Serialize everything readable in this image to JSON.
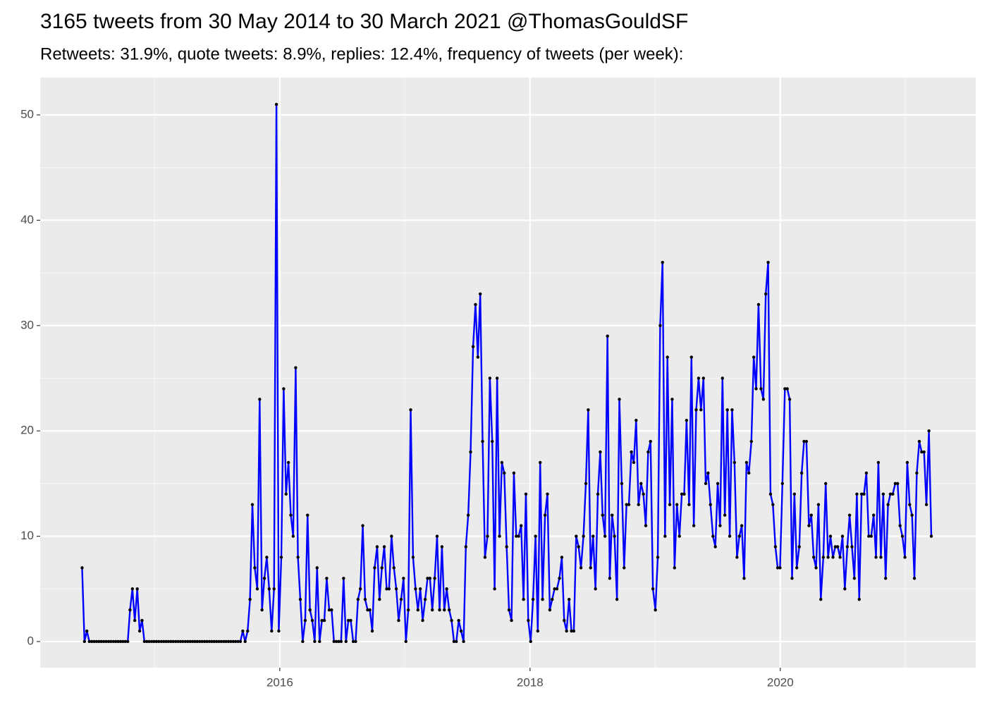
{
  "chart_data": {
    "type": "line",
    "title": "3165 tweets from 30 May 2014 to 30 March 2021 @ThomasGouldSF",
    "subtitle": "Retweets: 31.9%, quote tweets: 8.9%, replies: 12.4%, frequency of tweets (per week):",
    "color": "#0000ff",
    "point_color": "#000000",
    "grid": true,
    "xlim": [
      2014.085,
      2021.562
    ],
    "xticks": [
      2016,
      2018,
      2020
    ],
    "ylim": [
      -2.48,
      53.55
    ],
    "yticks": [
      0,
      10,
      20,
      30,
      40,
      50
    ],
    "x": [
      2014.42,
      2014.439,
      2014.458,
      2014.478,
      2014.497,
      2014.516,
      2014.535,
      2014.554,
      2014.573,
      2014.593,
      2014.612,
      2014.631,
      2014.65,
      2014.67,
      2014.689,
      2014.708,
      2014.727,
      2014.746,
      2014.765,
      2014.785,
      2014.803,
      2014.822,
      2014.841,
      2014.861,
      2014.88,
      2014.899,
      2014.918,
      2014.937,
      2014.956,
      2014.976,
      2014.995,
      2015.014,
      2015.033,
      2015.053,
      2015.072,
      2015.091,
      2015.11,
      2015.129,
      2015.148,
      2015.168,
      2015.187,
      2015.206,
      2015.225,
      2015.245,
      2015.264,
      2015.283,
      2015.302,
      2015.321,
      2015.34,
      2015.36,
      2015.379,
      2015.398,
      2015.417,
      2015.437,
      2015.456,
      2015.475,
      2015.494,
      2015.513,
      2015.532,
      2015.552,
      2015.57,
      2015.589,
      2015.608,
      2015.628,
      2015.647,
      2015.666,
      2015.685,
      2015.704,
      2015.723,
      2015.743,
      2015.762,
      2015.781,
      2015.8,
      2015.82,
      2015.839,
      2015.858,
      2015.877,
      2015.896,
      2015.915,
      2015.935,
      2015.954,
      2015.973,
      2015.992,
      2016.012,
      2016.031,
      2016.05,
      2016.069,
      2016.088,
      2016.107,
      2016.127,
      2016.145,
      2016.164,
      2016.183,
      2016.203,
      2016.222,
      2016.241,
      2016.26,
      2016.279,
      2016.298,
      2016.318,
      2016.337,
      2016.356,
      2016.375,
      2016.395,
      2016.414,
      2016.433,
      2016.452,
      2016.471,
      2016.49,
      2016.51,
      2016.529,
      2016.548,
      2016.567,
      2016.587,
      2016.606,
      2016.625,
      2016.644,
      2016.663,
      2016.682,
      2016.702,
      2016.72,
      2016.739,
      2016.758,
      2016.778,
      2016.797,
      2016.816,
      2016.835,
      2016.854,
      2016.873,
      2016.893,
      2016.912,
      2016.931,
      2016.95,
      2016.97,
      2016.989,
      2017.008,
      2017.027,
      2017.046,
      2017.065,
      2017.085,
      2017.104,
      2017.123,
      2017.142,
      2017.162,
      2017.181,
      2017.2,
      2017.219,
      2017.238,
      2017.257,
      2017.277,
      2017.296,
      2017.315,
      2017.334,
      2017.354,
      2017.373,
      2017.392,
      2017.411,
      2017.43,
      2017.449,
      2017.469,
      2017.487,
      2017.506,
      2017.525,
      2017.545,
      2017.564,
      2017.583,
      2017.602,
      2017.621,
      2017.64,
      2017.66,
      2017.679,
      2017.698,
      2017.717,
      2017.737,
      2017.756,
      2017.775,
      2017.794,
      2017.813,
      2017.832,
      2017.852,
      2017.871,
      2017.89,
      2017.909,
      2017.929,
      2017.948,
      2017.967,
      2017.986,
      2018.005,
      2018.024,
      2018.044,
      2018.062,
      2018.081,
      2018.1,
      2018.12,
      2018.139,
      2018.158,
      2018.177,
      2018.196,
      2018.215,
      2018.235,
      2018.254,
      2018.273,
      2018.292,
      2018.312,
      2018.331,
      2018.35,
      2018.369,
      2018.388,
      2018.407,
      2018.427,
      2018.446,
      2018.465,
      2018.484,
      2018.504,
      2018.523,
      2018.542,
      2018.561,
      2018.58,
      2018.599,
      2018.619,
      2018.637,
      2018.656,
      2018.675,
      2018.695,
      2018.714,
      2018.733,
      2018.752,
      2018.771,
      2018.79,
      2018.81,
      2018.829,
      2018.848,
      2018.867,
      2018.887,
      2018.906,
      2018.925,
      2018.944,
      2018.963,
      2018.982,
      2019.002,
      2019.021,
      2019.04,
      2019.059,
      2019.079,
      2019.098,
      2019.117,
      2019.136,
      2019.155,
      2019.174,
      2019.194,
      2019.213,
      2019.232,
      2019.251,
      2019.271,
      2019.29,
      2019.309,
      2019.328,
      2019.347,
      2019.366,
      2019.386,
      2019.404,
      2019.423,
      2019.442,
      2019.462,
      2019.481,
      2019.5,
      2019.519,
      2019.538,
      2019.557,
      2019.577,
      2019.596,
      2019.615,
      2019.634,
      2019.654,
      2019.673,
      2019.692,
      2019.711,
      2019.73,
      2019.749,
      2019.769,
      2019.788,
      2019.807,
      2019.826,
      2019.846,
      2019.865,
      2019.884,
      2019.903,
      2019.922,
      2019.941,
      2019.961,
      2019.979,
      2019.998,
      2020.017,
      2020.037,
      2020.056,
      2020.075,
      2020.094,
      2020.113,
      2020.132,
      2020.152,
      2020.171,
      2020.19,
      2020.209,
      2020.229,
      2020.248,
      2020.267,
      2020.286,
      2020.305,
      2020.324,
      2020.344,
      2020.363,
      2020.382,
      2020.401,
      2020.421,
      2020.44,
      2020.459,
      2020.478,
      2020.497,
      2020.516,
      2020.536,
      2020.554,
      2020.573,
      2020.592,
      2020.612,
      2020.631,
      2020.65,
      2020.669,
      2020.688,
      2020.707,
      2020.727,
      2020.746,
      2020.765,
      2020.784,
      2020.804,
      2020.823,
      2020.842,
      2020.861,
      2020.88,
      2020.899,
      2020.919,
      2020.938,
      2020.957,
      2020.976,
      2020.996,
      2021.015,
      2021.034,
      2021.053,
      2021.072,
      2021.091,
      2021.111,
      2021.13,
      2021.149,
      2021.168,
      2021.188,
      2021.207
    ],
    "values": [
      7,
      0,
      1,
      0,
      0,
      0,
      0,
      0,
      0,
      0,
      0,
      0,
      0,
      0,
      0,
      0,
      0,
      0,
      0,
      0,
      3,
      5,
      2,
      5,
      1,
      2,
      0,
      0,
      0,
      0,
      0,
      0,
      0,
      0,
      0,
      0,
      0,
      0,
      0,
      0,
      0,
      0,
      0,
      0,
      0,
      0,
      0,
      0,
      0,
      0,
      0,
      0,
      0,
      0,
      0,
      0,
      0,
      0,
      0,
      0,
      0,
      0,
      0,
      0,
      0,
      0,
      0,
      1,
      0,
      1,
      4,
      13,
      7,
      5,
      23,
      3,
      6,
      8,
      5,
      1,
      5,
      51,
      1,
      8,
      24,
      14,
      17,
      12,
      10,
      26,
      8,
      4,
      0,
      2,
      12,
      3,
      2,
      0,
      7,
      0,
      2,
      2,
      6,
      3,
      3,
      0,
      0,
      0,
      0,
      6,
      0,
      2,
      2,
      0,
      0,
      4,
      5,
      11,
      4,
      3,
      3,
      1,
      7,
      9,
      4,
      7,
      9,
      5,
      5,
      10,
      7,
      5,
      2,
      4,
      6,
      0,
      3,
      22,
      8,
      5,
      3,
      5,
      2,
      4,
      6,
      6,
      3,
      6,
      10,
      3,
      9,
      3,
      5,
      3,
      2,
      0,
      0,
      2,
      1,
      0,
      9,
      12,
      18,
      28,
      32,
      27,
      33,
      19,
      8,
      10,
      25,
      19,
      5,
      25,
      10,
      17,
      16,
      9,
      3,
      2,
      16,
      10,
      10,
      11,
      4,
      14,
      2,
      0,
      4,
      10,
      1,
      17,
      4,
      12,
      14,
      3,
      4,
      5,
      5,
      6,
      8,
      2,
      1,
      4,
      1,
      1,
      10,
      9,
      7,
      10,
      15,
      22,
      7,
      10,
      5,
      14,
      18,
      12,
      10,
      29,
      6,
      12,
      10,
      4,
      23,
      15,
      7,
      13,
      13,
      18,
      17,
      21,
      13,
      15,
      14,
      11,
      18,
      19,
      5,
      3,
      8,
      30,
      36,
      10,
      27,
      13,
      23,
      7,
      13,
      10,
      14,
      14,
      21,
      13,
      27,
      11,
      22,
      25,
      22,
      25,
      15,
      16,
      13,
      10,
      9,
      15,
      11,
      25,
      12,
      22,
      10,
      22,
      17,
      8,
      10,
      11,
      6,
      17,
      16,
      19,
      27,
      24,
      32,
      24,
      23,
      33,
      36,
      14,
      13,
      9,
      7,
      7,
      15,
      24,
      24,
      23,
      6,
      14,
      7,
      9,
      16,
      19,
      19,
      11,
      12,
      8,
      7,
      13,
      4,
      8,
      15,
      8,
      10,
      8,
      9,
      9,
      8,
      10,
      5,
      9,
      12,
      9,
      6,
      14,
      4,
      14,
      14,
      16,
      10,
      10,
      12,
      8,
      17,
      8,
      14,
      6,
      13,
      14,
      14,
      15,
      15,
      11,
      10,
      8,
      17,
      13,
      12,
      6,
      16,
      19,
      18,
      18,
      13,
      20,
      10
    ]
  }
}
